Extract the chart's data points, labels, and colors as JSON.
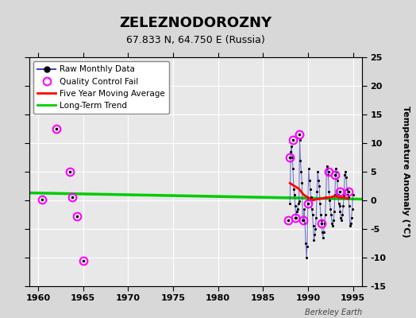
{
  "title": "ZELEZNODOROZNY",
  "subtitle": "67.833 N, 64.750 E (Russia)",
  "ylabel_right": "Temperature Anomaly (°C)",
  "watermark": "Berkeley Earth",
  "xlim": [
    1959,
    1996
  ],
  "ylim": [
    -15,
    25
  ],
  "yticks_right": [
    -15,
    -10,
    -5,
    0,
    5,
    10,
    15,
    20,
    25
  ],
  "xticks": [
    1960,
    1965,
    1970,
    1975,
    1980,
    1985,
    1990,
    1995
  ],
  "bg_color": "#d8d8d8",
  "plot_bg_color": "#e8e8e8",
  "grid_color": "#ffffff",
  "long_term_trend": {
    "x": [
      1959,
      1996
    ],
    "y": [
      1.3,
      0.2
    ]
  },
  "qc_fail_points": [
    [
      1960.4,
      0.1
    ],
    [
      1962.0,
      12.5
    ],
    [
      1963.5,
      5.0
    ],
    [
      1963.8,
      0.5
    ],
    [
      1964.3,
      -2.8
    ],
    [
      1965.0,
      -10.5
    ],
    [
      1987.8,
      -3.5
    ],
    [
      1988.0,
      7.5
    ],
    [
      1988.3,
      10.5
    ],
    [
      1988.6,
      -3.0
    ],
    [
      1989.0,
      11.5
    ],
    [
      1989.5,
      -3.5
    ],
    [
      1990.0,
      -0.5
    ],
    [
      1991.5,
      -4.0
    ],
    [
      1992.3,
      5.0
    ],
    [
      1993.0,
      4.5
    ],
    [
      1993.5,
      1.5
    ],
    [
      1994.5,
      1.5
    ]
  ],
  "raw_monthly_data": {
    "x": [
      1988.0,
      1988.083,
      1988.167,
      1988.25,
      1988.333,
      1988.417,
      1988.5,
      1988.583,
      1988.667,
      1988.75,
      1988.833,
      1988.917,
      1989.0,
      1989.083,
      1989.167,
      1989.25,
      1989.333,
      1989.417,
      1989.5,
      1989.583,
      1989.667,
      1989.75,
      1989.833,
      1989.917,
      1990.0,
      1990.083,
      1990.167,
      1990.25,
      1990.333,
      1990.417,
      1990.5,
      1990.583,
      1990.667,
      1990.75,
      1990.833,
      1990.917,
      1991.0,
      1991.083,
      1991.167,
      1991.25,
      1991.333,
      1991.417,
      1991.5,
      1991.583,
      1991.667,
      1991.75,
      1991.833,
      1991.917,
      1992.0,
      1992.083,
      1992.167,
      1992.25,
      1992.333,
      1992.417,
      1992.5,
      1992.583,
      1992.667,
      1992.75,
      1992.833,
      1992.917,
      1993.0,
      1993.083,
      1993.167,
      1993.25,
      1993.333,
      1993.417,
      1993.5,
      1993.583,
      1993.667,
      1993.75,
      1993.833,
      1993.917,
      1994.0,
      1994.083,
      1994.167,
      1994.25,
      1994.333,
      1994.417,
      1994.5,
      1994.583,
      1994.667,
      1994.75,
      1994.833,
      1994.917,
      1995.0
    ],
    "y": [
      -0.5,
      8.5,
      9.5,
      7.5,
      5.5,
      2.0,
      1.0,
      -1.0,
      -3.0,
      -2.0,
      -1.5,
      -0.5,
      -0.2,
      10.5,
      7.0,
      5.0,
      3.0,
      -3.5,
      -3.5,
      -1.5,
      -4.0,
      -7.5,
      -10.0,
      -8.0,
      0.2,
      5.5,
      3.5,
      2.0,
      0.5,
      -1.5,
      -2.5,
      -4.5,
      -7.0,
      -6.0,
      -5.0,
      -3.0,
      1.5,
      5.0,
      3.5,
      2.5,
      -0.5,
      -2.5,
      -3.5,
      -5.5,
      -6.5,
      -5.5,
      -4.0,
      -2.5,
      0.5,
      6.0,
      5.5,
      4.5,
      1.5,
      0.0,
      -1.5,
      -2.5,
      -4.0,
      -4.5,
      -3.5,
      -2.0,
      1.0,
      5.5,
      5.0,
      3.5,
      1.0,
      -0.5,
      -1.0,
      -2.0,
      -3.0,
      -3.5,
      -2.5,
      -1.0,
      0.8,
      4.5,
      5.0,
      4.0,
      2.0,
      1.0,
      0.5,
      -1.0,
      -4.5,
      -4.0,
      -3.0,
      -1.5,
      1.0
    ]
  },
  "five_year_ma": {
    "x": [
      1988.0,
      1988.5,
      1989.0,
      1989.5,
      1990.0,
      1990.5,
      1991.0,
      1991.5,
      1992.0,
      1992.5,
      1993.0,
      1993.5,
      1994.0,
      1994.5
    ],
    "y": [
      3.0,
      2.5,
      2.0,
      1.0,
      0.5,
      0.0,
      0.2,
      0.3,
      0.5,
      0.5,
      0.8,
      0.5,
      0.5,
      0.3
    ]
  }
}
